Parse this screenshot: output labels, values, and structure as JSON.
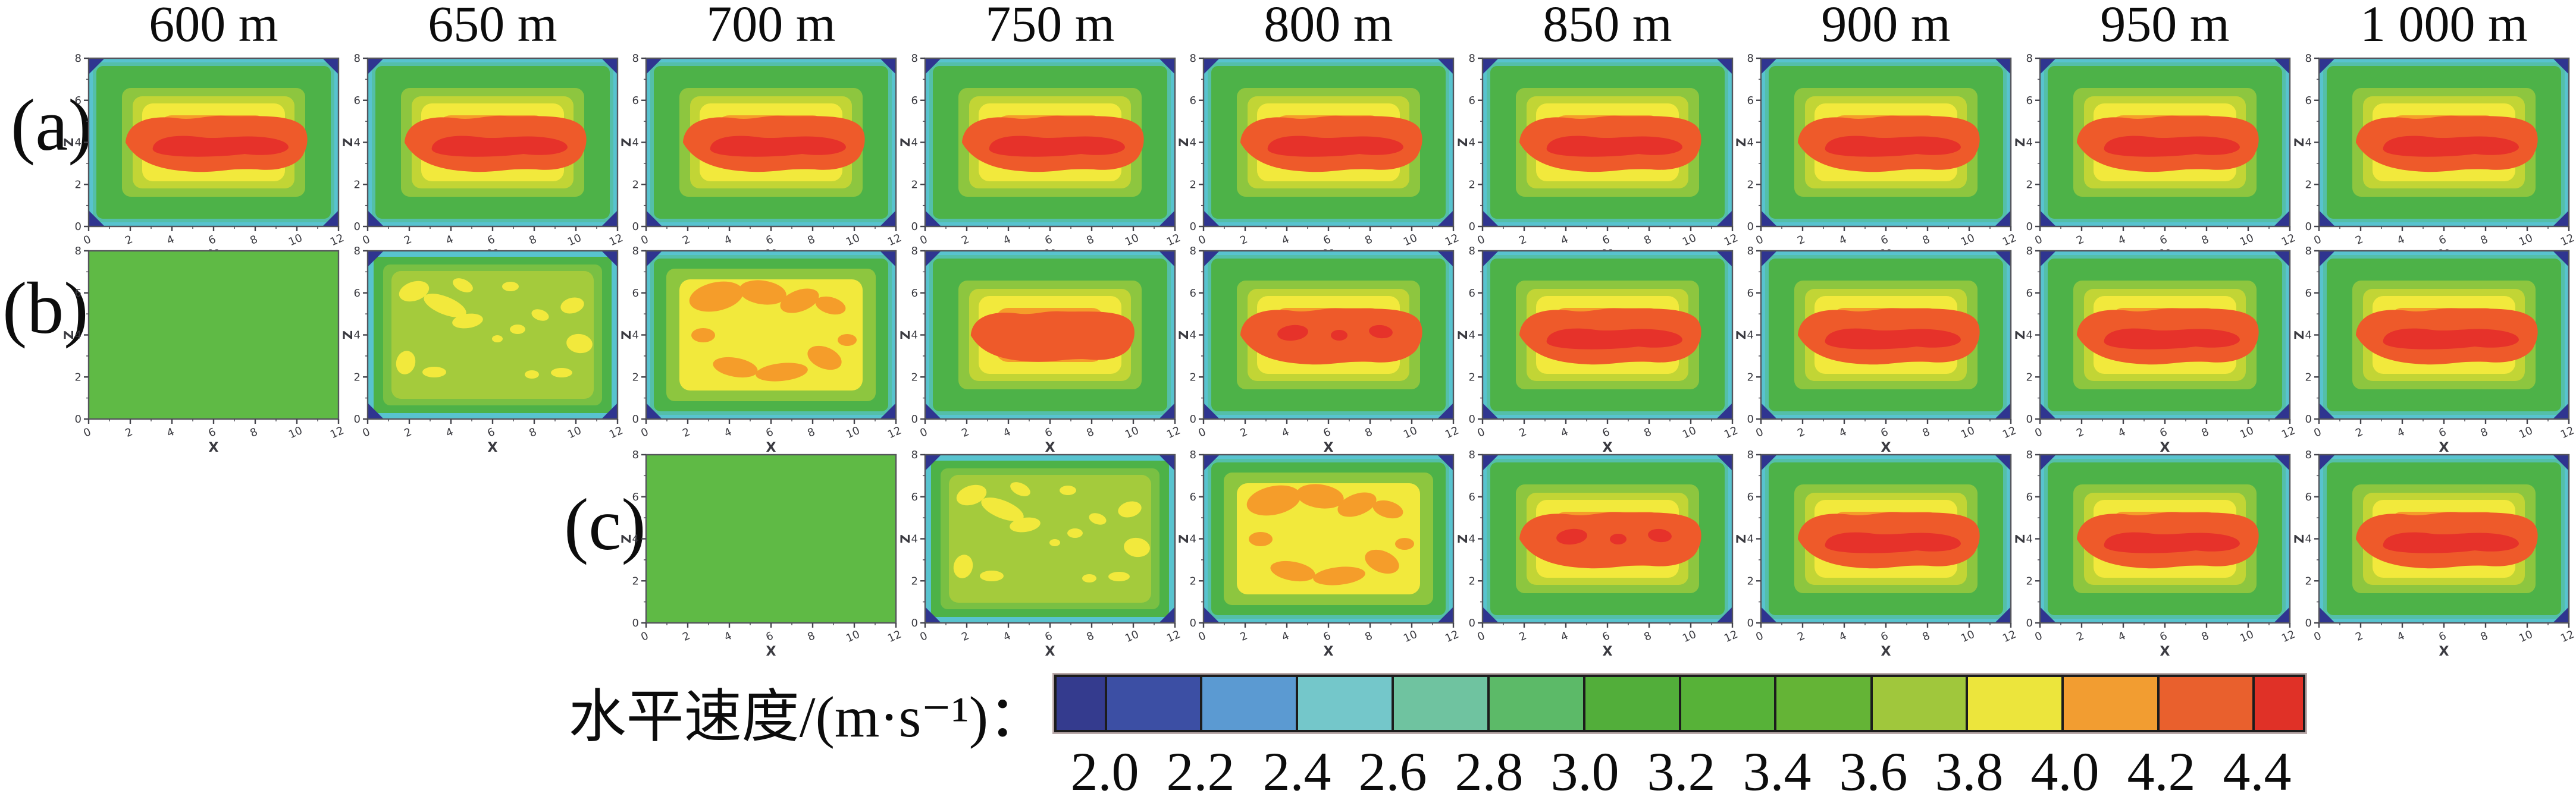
{
  "figure": {
    "column_titles": [
      "600 m",
      "650 m",
      "700 m",
      "750 m",
      "800 m",
      "850 m",
      "900 m",
      "950 m",
      "1 000 m"
    ],
    "rows": [
      {
        "label": "(a)",
        "start_col": 0,
        "profiles": [
          "red-band",
          "red-band",
          "red-band",
          "red-band",
          "red-band",
          "red-band",
          "red-band",
          "red-band",
          "red-band"
        ]
      },
      {
        "label": "(b)",
        "start_col": 0,
        "profiles": [
          "uniform",
          "speckled",
          "patches",
          "orange-core",
          "red-spots",
          "red-band",
          "red-band",
          "red-band",
          "red-band"
        ]
      },
      {
        "label": "(c)",
        "start_col": 2,
        "profiles": [
          "uniform",
          "speckled",
          "patches",
          "red-spots",
          "red-band",
          "red-band",
          "red-band"
        ]
      }
    ],
    "axes": {
      "x_label": "X",
      "y_label": "Z",
      "x_ticks": [
        "0",
        "2",
        "4",
        "6",
        "8",
        "10",
        "12"
      ],
      "y_ticks": [
        "0",
        "2",
        "4",
        "6",
        "8"
      ]
    },
    "colorbar": {
      "label": "水平速度/(m·s⁻¹)：",
      "tick_labels": [
        "2.0",
        "2.2",
        "2.4",
        "2.6",
        "2.8",
        "3.0",
        "3.2",
        "3.4",
        "3.6",
        "3.8",
        "4.0",
        "4.2",
        "4.4"
      ],
      "segment_colors": [
        "#343b8e",
        "#3c4fa4",
        "#5b9ad2",
        "#74c7ca",
        "#6fc3a0",
        "#5cba68",
        "#52ae3a",
        "#57b238",
        "#64b436",
        "#a0c73c",
        "#ece53c",
        "#f29d31",
        "#e9602d",
        "#e03127"
      ]
    },
    "plot_palette": {
      "cyan": "#58c3cf",
      "teal": "#54bfa9",
      "green": "#4db248",
      "light_green": "#8dc63f",
      "yellow_green": "#c2d535",
      "yellow": "#f2e93c",
      "orange": "#f59d2a",
      "red_orange": "#ee5a2a",
      "red": "#e6322a",
      "navy": "#2f3590",
      "olive": "#a4cb3c",
      "uniform_green": "#5fba45",
      "ring_green_2": "#79c043"
    }
  },
  "chart_data": {
    "type": "heatmap",
    "title": "",
    "subplot_columns": [
      "600 m",
      "650 m",
      "700 m",
      "750 m",
      "800 m",
      "850 m",
      "900 m",
      "950 m",
      "1 000 m"
    ],
    "subplot_rows": [
      "(a)",
      "(b)",
      "(c)"
    ],
    "xlabel": "X",
    "xlim": [
      0,
      12
    ],
    "xticks": [
      0,
      2,
      4,
      6,
      8,
      10,
      12
    ],
    "ylabel": "Z",
    "ylim": [
      0,
      8
    ],
    "yticks": [
      0,
      2,
      4,
      6,
      8
    ],
    "colorbar_label": "水平速度/(m·s⁻¹)",
    "colorbar_ticks": [
      2.0,
      2.2,
      2.4,
      2.6,
      2.8,
      3.0,
      3.2,
      3.4,
      3.6,
      3.8,
      4.0,
      4.2,
      4.4
    ],
    "colorbar_range": [
      2.0,
      4.4
    ],
    "legend_position": "bottom",
    "grid": false,
    "rows_detail": [
      {
        "row": "(a)",
        "columns": [
          "600 m",
          "650 m",
          "700 m",
          "750 m",
          "800 m",
          "850 m",
          "900 m",
          "950 m",
          "1 000 m"
        ],
        "pattern": "fully developed core",
        "peak_velocity": [
          4.4,
          4.4,
          4.4,
          4.4,
          4.4,
          4.4,
          4.4,
          4.4,
          4.4
        ],
        "edge_minimum": [
          2.0,
          2.0,
          2.0,
          2.0,
          2.0,
          2.0,
          2.0,
          2.0,
          2.0
        ]
      },
      {
        "row": "(b)",
        "columns": [
          "600 m",
          "650 m",
          "700 m",
          "750 m",
          "800 m",
          "850 m",
          "900 m",
          "950 m",
          "1 000 m"
        ],
        "pattern": "developing: uniform -> speckles -> orange patches -> red core",
        "peak_velocity": [
          3.1,
          3.8,
          4.2,
          4.4,
          4.4,
          4.4,
          4.4,
          4.4,
          4.4
        ],
        "edge_minimum": [
          3.0,
          2.0,
          2.0,
          2.0,
          2.0,
          2.0,
          2.0,
          2.0,
          2.0
        ]
      },
      {
        "row": "(c)",
        "columns": [
          "700 m",
          "750 m",
          "800 m",
          "850 m",
          "900 m",
          "950 m",
          "1 000 m"
        ],
        "pattern": "developing (shifted two columns vs row b)",
        "peak_velocity": [
          3.1,
          3.8,
          4.2,
          4.4,
          4.4,
          4.4,
          4.4
        ],
        "edge_minimum": [
          3.0,
          2.0,
          2.0,
          2.0,
          2.0,
          2.0,
          2.0
        ]
      }
    ]
  }
}
